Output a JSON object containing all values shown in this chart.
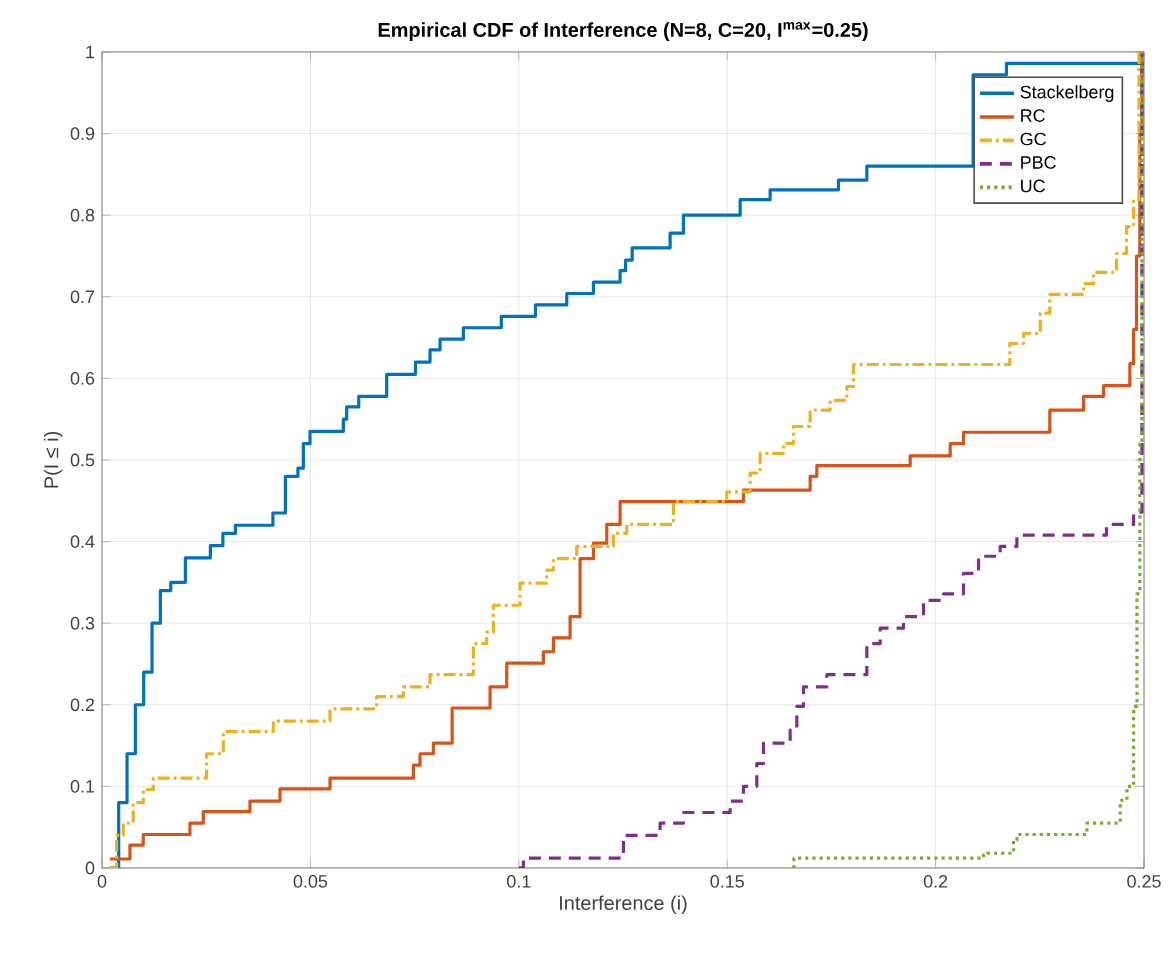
{
  "chart_data": {
    "type": "step",
    "title": "Empirical CDF of Interference (N=8, C=20, I$^{max}$=0.25)",
    "xlabel": "Interference (i)",
    "ylabel": "P(I ≤ i)",
    "xlim": [
      0,
      0.25
    ],
    "ylim": [
      0,
      1
    ],
    "xticks": [
      0,
      0.05,
      0.1,
      0.15,
      0.2,
      0.25
    ],
    "yticks": [
      0,
      0.1,
      0.2,
      0.3,
      0.4,
      0.5,
      0.6,
      0.7,
      0.8,
      0.9,
      1
    ],
    "grid": true,
    "legend": "top right",
    "series": [
      {
        "name": "Stackelberg",
        "color": "#0072bd",
        "line_style": "solid",
        "x": [
          0.002,
          0.004,
          0.006,
          0.008,
          0.01,
          0.012,
          0.014,
          0.0165,
          0.02,
          0.026,
          0.029,
          0.032,
          0.041,
          0.044,
          0.047,
          0.0483,
          0.0499,
          0.0579,
          0.0587,
          0.0616,
          0.0683,
          0.0752,
          0.0787,
          0.0811,
          0.0867,
          0.0958,
          0.104,
          0.1115,
          0.1179,
          0.1243,
          0.1256,
          0.1272,
          0.1363,
          0.1395,
          0.1531,
          0.1603,
          0.1767,
          0.1835,
          0.209,
          0.217,
          0.25
        ],
        "values": [
          0,
          0.08,
          0.14,
          0.2,
          0.24,
          0.3,
          0.34,
          0.35,
          0.38,
          0.395,
          0.41,
          0.42,
          0.435,
          0.48,
          0.49,
          0.52,
          0.535,
          0.55,
          0.565,
          0.578,
          0.605,
          0.62,
          0.635,
          0.648,
          0.662,
          0.676,
          0.69,
          0.704,
          0.718,
          0.732,
          0.745,
          0.76,
          0.778,
          0.8,
          0.819,
          0.831,
          0.843,
          0.86,
          0.972,
          0.986,
          0.986
        ]
      },
      {
        "name": "RC",
        "color": "#d95319",
        "line_style": "solid",
        "x": [
          0.0019,
          0.0067,
          0.0099,
          0.0211,
          0.0243,
          0.0355,
          0.0427,
          0.0547,
          0.0747,
          0.0763,
          0.0795,
          0.084,
          0.0931,
          0.0971,
          0.1059,
          0.1083,
          0.1123,
          0.1147,
          0.1179,
          0.1211,
          0.1243,
          0.1539,
          0.1699,
          0.1715,
          0.1939,
          0.2035,
          0.2067,
          0.2274,
          0.2355,
          0.2403,
          0.2466,
          0.2475,
          0.2482,
          0.249,
          0.2495,
          0.25
        ],
        "values": [
          0.011,
          0.028,
          0.041,
          0.055,
          0.069,
          0.082,
          0.097,
          0.11,
          0.126,
          0.14,
          0.153,
          0.196,
          0.222,
          0.251,
          0.265,
          0.282,
          0.308,
          0.379,
          0.398,
          0.421,
          0.449,
          0.463,
          0.48,
          0.493,
          0.505,
          0.52,
          0.534,
          0.561,
          0.578,
          0.591,
          0.618,
          0.66,
          0.75,
          0.9,
          1,
          1
        ]
      },
      {
        "name": "GC",
        "color": "#edb120",
        "line_style": "dashdot",
        "x": [
          0.0019,
          0.0035,
          0.0051,
          0.0075,
          0.0099,
          0.0123,
          0.0251,
          0.0291,
          0.0411,
          0.0547,
          0.0659,
          0.0723,
          0.0787,
          0.0891,
          0.0923,
          0.0939,
          0.1003,
          0.1067,
          0.1083,
          0.1139,
          0.1227,
          0.1259,
          0.1371,
          0.1499,
          0.1555,
          0.1579,
          0.1635,
          0.1659,
          0.1699,
          0.1747,
          0.1787,
          0.1803,
          0.2178,
          0.2211,
          0.2251,
          0.2274,
          0.2355,
          0.2379,
          0.2434,
          0.2458,
          0.2475,
          0.2488,
          0.25
        ],
        "values": [
          0,
          0.04,
          0.055,
          0.08,
          0.096,
          0.11,
          0.14,
          0.167,
          0.18,
          0.195,
          0.21,
          0.222,
          0.237,
          0.275,
          0.289,
          0.322,
          0.349,
          0.365,
          0.379,
          0.394,
          0.41,
          0.421,
          0.449,
          0.461,
          0.484,
          0.508,
          0.52,
          0.541,
          0.561,
          0.573,
          0.59,
          0.617,
          0.643,
          0.655,
          0.68,
          0.703,
          0.716,
          0.73,
          0.753,
          0.786,
          0.819,
          1,
          1
        ]
      },
      {
        "name": "PBC",
        "color": "#7e2f8e",
        "line_style": "dashed",
        "x": [
          0.1,
          0.1011,
          0.1251,
          0.1339,
          0.1395,
          0.1507,
          0.1539,
          0.1571,
          0.1587,
          0.1651,
          0.1667,
          0.1683,
          0.1739,
          0.1835,
          0.1867,
          0.1923,
          0.1971,
          0.2019,
          0.2067,
          0.2103,
          0.2155,
          0.2195,
          0.241,
          0.2475,
          0.2495,
          0.25
        ],
        "values": [
          0,
          0.012,
          0.04,
          0.055,
          0.068,
          0.082,
          0.1,
          0.128,
          0.153,
          0.169,
          0.198,
          0.222,
          0.237,
          0.275,
          0.294,
          0.308,
          0.328,
          0.336,
          0.361,
          0.382,
          0.394,
          0.408,
          0.421,
          0.436,
          1,
          1
        ]
      },
      {
        "name": "UC",
        "color": "#77ac30",
        "line_style": "dotted",
        "x": [
          0.1659,
          0.166,
          0.2115,
          0.2123,
          0.2187,
          0.2195,
          0.2363,
          0.2443,
          0.2459,
          0.2475,
          0.2483,
          0.249,
          0.2495,
          0.25
        ],
        "values": [
          0,
          0.012,
          0.016,
          0.018,
          0.034,
          0.041,
          0.055,
          0.083,
          0.1,
          0.198,
          0.336,
          0.52,
          1,
          1
        ]
      }
    ]
  }
}
